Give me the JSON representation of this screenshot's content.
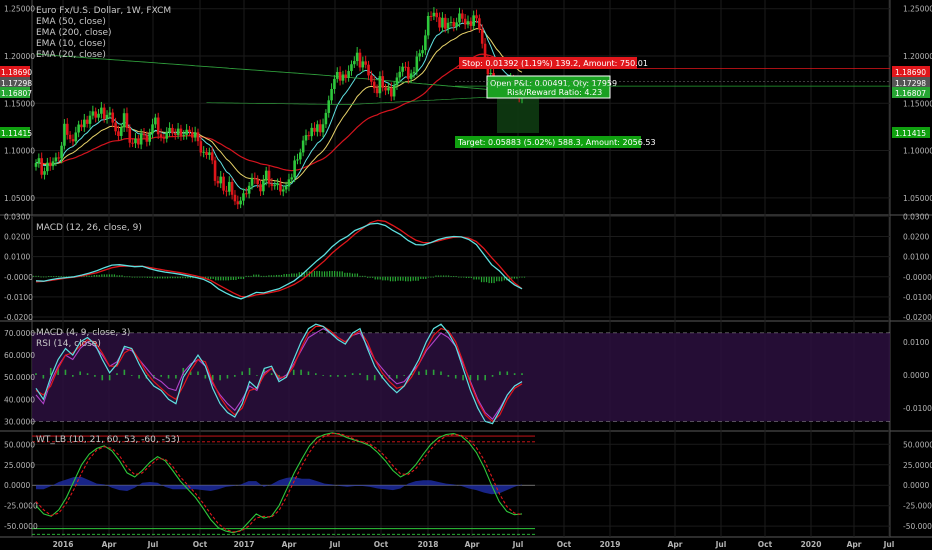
{
  "chart_data": {
    "type": "candlestick",
    "title": "Euro Fx/U.S. Dollar, 1W, FXCM",
    "x_ticks": [
      "2016",
      "Apr",
      "Jul",
      "Oct",
      "2017",
      "Apr",
      "Jul",
      "Oct",
      "2018",
      "Apr",
      "Jul",
      "Oct",
      "2019",
      "Apr",
      "Jul",
      "Oct",
      "2020",
      "Apr",
      "Jul"
    ],
    "price_pane": {
      "legend": [
        "EMA (50, close)",
        "EMA (200, close)",
        "EMA (10, close)",
        "EMA (20, close)"
      ],
      "ylim": [
        1.035,
        1.255
      ],
      "y_ticks": [
        "1.25000",
        "1.20000",
        "1.15000",
        "1.10000",
        "1.05000"
      ],
      "badges": [
        {
          "text": "1.18690",
          "color": "#e0161b"
        },
        {
          "text": "1.17298",
          "color": "#555555"
        },
        {
          "text": "1.16807",
          "color": "#26a533"
        },
        {
          "text": "1.11415",
          "color": "#10a010"
        }
      ],
      "trade": {
        "stop_label": "Stop: 0.01392 (1.19%) 139.2, Amount: 750.01",
        "open_label": "Open P&L: 0.00491, Qty: 17959",
        "rr_label": "Risk/Reward Ratio: 4.23",
        "target_label": "Target: 0.05883 (5.02%) 588.3, Amount: 2056.53"
      },
      "series_values": [
        1.0868,
        1.0919,
        1.0744,
        1.0782,
        1.0872,
        1.0835,
        1.0886,
        1.0927,
        1.0916,
        1.1051,
        1.1283,
        1.1166,
        1.1121,
        1.1097,
        1.1191,
        1.1275,
        1.1247,
        1.1327,
        1.1282,
        1.1369,
        1.1414,
        1.1348,
        1.1389,
        1.1454,
        1.1335,
        1.1377,
        1.1402,
        1.1296,
        1.1203,
        1.1154,
        1.1246,
        1.1395,
        1.1238,
        1.1083,
        1.1077,
        1.1125,
        1.1064,
        1.1179,
        1.1162,
        1.1093,
        1.1181,
        1.1277,
        1.1349,
        1.1172,
        1.1138,
        1.1125,
        1.1197,
        1.1239,
        1.1182,
        1.1165,
        1.1232,
        1.1153,
        1.1166,
        1.122,
        1.1196,
        1.1137,
        1.1192,
        1.1099,
        1.0979,
        1.0987,
        1.0953,
        1.0981,
        1.0896,
        1.0679,
        1.0653,
        1.0724,
        1.0576,
        1.0565,
        1.0668,
        1.0532,
        1.0463,
        1.0431,
        1.047,
        1.0548,
        1.0544,
        1.0627,
        1.0708,
        1.0698,
        1.0644,
        1.0569,
        1.0682,
        1.0787,
        1.065,
        1.0626,
        1.0634,
        1.0654,
        1.0567,
        1.0589,
        1.062,
        1.0695,
        1.0716,
        1.0895,
        1.0906,
        1.098,
        1.1106,
        1.1163,
        1.1152,
        1.124,
        1.1199,
        1.1278,
        1.1193,
        1.1278,
        1.1398,
        1.1531,
        1.1651,
        1.1758,
        1.1831,
        1.1739,
        1.1804,
        1.1768,
        1.1841,
        1.1913,
        1.1947,
        1.2035,
        1.1879,
        1.1943,
        1.1908,
        1.1795,
        1.1728,
        1.1659,
        1.1606,
        1.1787,
        1.1665,
        1.1636,
        1.1661,
        1.1572,
        1.1691,
        1.1773,
        1.1833,
        1.1887,
        1.1884,
        1.1758,
        1.1816,
        1.1833,
        1.1994,
        1.2029,
        1.2062,
        1.2218,
        1.2423,
        1.242,
        1.2457,
        1.241,
        1.2301,
        1.2404,
        1.2289,
        1.2351,
        1.236,
        1.2311,
        1.2355,
        1.245,
        1.2394,
        1.2333,
        1.2368,
        1.2318,
        1.243,
        1.2399,
        1.2285,
        1.213,
        1.1968,
        1.1808,
        1.182,
        1.1676,
        1.1654,
        1.1721,
        1.1616,
        1.1683,
        1.1666,
        1.176,
        1.1688,
        1.161,
        1.155,
        1.1685
      ]
    },
    "macd_pane": {
      "legend": "MACD (12, 26, close, 9)",
      "ylim": [
        -0.0205,
        0.0302
      ],
      "y_ticks": [
        "0.0300",
        "0.0200",
        "0.0100",
        "-0.0000",
        "-0.0100",
        "-0.0200"
      ],
      "macd": [
        -0.002,
        -0.0022,
        -0.0014,
        -0.0008,
        -0.0004,
        0.0,
        0.0008,
        0.0018,
        0.003,
        0.0045,
        0.0058,
        0.006,
        0.0055,
        0.005,
        0.0052,
        0.004,
        0.003,
        0.0023,
        0.0018,
        0.0012,
        0.0005,
        -0.0003,
        -0.0012,
        -0.003,
        -0.006,
        -0.008,
        -0.0098,
        -0.011,
        -0.0095,
        -0.0078,
        -0.008,
        -0.007,
        -0.006,
        -0.004,
        -0.002,
        0.001,
        0.0045,
        0.008,
        0.011,
        0.015,
        0.018,
        0.02,
        0.023,
        0.0245,
        0.0262,
        0.0265,
        0.0255,
        0.023,
        0.021,
        0.018,
        0.016,
        0.0158,
        0.017,
        0.0185,
        0.0195,
        0.02,
        0.0198,
        0.0185,
        0.016,
        0.011,
        0.006,
        0.003,
        -0.001,
        -0.004,
        -0.006
      ],
      "signal": [
        -0.0025,
        -0.0023,
        -0.0018,
        -0.0012,
        -0.0006,
        -0.0002,
        0.0004,
        0.0012,
        0.002,
        0.0032,
        0.0045,
        0.0052,
        0.0053,
        0.0052,
        0.0052,
        0.0046,
        0.0039,
        0.0032,
        0.0026,
        0.002,
        0.0013,
        0.0005,
        -0.0004,
        -0.0018,
        -0.004,
        -0.006,
        -0.008,
        -0.0098,
        -0.01,
        -0.009,
        -0.0085,
        -0.0078,
        -0.007,
        -0.0055,
        -0.0038,
        -0.0015,
        0.0015,
        0.0048,
        0.008,
        0.0118,
        0.015,
        0.0178,
        0.0212,
        0.024,
        0.0268,
        0.028,
        0.0275,
        0.0255,
        0.0232,
        0.0205,
        0.0182,
        0.017,
        0.017,
        0.0178,
        0.0188,
        0.0196,
        0.0198,
        0.0192,
        0.0175,
        0.014,
        0.0095,
        0.0055,
        0.001,
        -0.003,
        -0.006
      ]
    },
    "osc_pane": {
      "legend_macd": "MACD (4, 9, close, 3)",
      "legend_rsi": "RSI (14, close)",
      "left_ylim": [
        27,
        75
      ],
      "left_ticks": [
        "70.0000",
        "60.0000",
        "50.0000",
        "40.0000",
        "30.0000"
      ],
      "right_ylim": [
        -0.016,
        0.016
      ],
      "right_ticks": [
        "0.0100",
        "0.0000",
        "-0.0100"
      ],
      "upper_band": 70,
      "lower_band": 30,
      "rsi": [
        42,
        38,
        48,
        55,
        60,
        58,
        63,
        66,
        64,
        60,
        55,
        57,
        63,
        62,
        58,
        54,
        50,
        48,
        45,
        44,
        52,
        56,
        58,
        55,
        47,
        42,
        38,
        35,
        40,
        46,
        44,
        52,
        54,
        49,
        51,
        56,
        62,
        68,
        70,
        72,
        70,
        68,
        66,
        69,
        70,
        64,
        58,
        54,
        50,
        47,
        48,
        52,
        56,
        62,
        66,
        70,
        68,
        64,
        56,
        48,
        40,
        34,
        31,
        36,
        42,
        46,
        48
      ],
      "macd_fast": [
        45,
        40,
        50,
        58,
        63,
        60,
        66,
        68,
        65,
        58,
        52,
        56,
        64,
        63,
        56,
        50,
        46,
        44,
        40,
        38,
        50,
        55,
        60,
        55,
        45,
        38,
        34,
        32,
        38,
        48,
        45,
        54,
        55,
        48,
        50,
        58,
        66,
        72,
        74,
        73,
        70,
        67,
        65,
        70,
        72,
        63,
        55,
        50,
        46,
        43,
        46,
        52,
        58,
        66,
        72,
        74,
        70,
        64,
        54,
        44,
        36,
        30,
        29,
        35,
        42,
        46,
        48
      ],
      "macd_slow": [
        44,
        42,
        46,
        54,
        60,
        61,
        64,
        67,
        66,
        61,
        55,
        55,
        61,
        63,
        58,
        52,
        48,
        45,
        42,
        40,
        46,
        53,
        58,
        57,
        48,
        41,
        36,
        33,
        36,
        44,
        45,
        51,
        54,
        50,
        50,
        55,
        63,
        70,
        73,
        73,
        71,
        68,
        66,
        69,
        71,
        66,
        58,
        52,
        48,
        45,
        46,
        50,
        56,
        63,
        69,
        72,
        71,
        66,
        57,
        47,
        39,
        33,
        30,
        33,
        40,
        45,
        47
      ]
    },
    "wt_pane": {
      "legend": "WT_LB (10, 21, 60, 53, -60, -53)",
      "ylim": [
        -62,
        65
      ],
      "y_ticks": [
        "50.0000",
        "25.0000",
        "0.0000",
        "-25.0000",
        "-50.0000"
      ],
      "levels": [
        60,
        53,
        -53,
        -60
      ],
      "wt1": [
        -25,
        -35,
        -38,
        -30,
        -15,
        5,
        25,
        38,
        45,
        48,
        42,
        30,
        15,
        10,
        18,
        28,
        35,
        30,
        18,
        5,
        -5,
        -15,
        -28,
        -42,
        -52,
        -56,
        -58,
        -55,
        -45,
        -35,
        -40,
        -38,
        -25,
        -5,
        15,
        32,
        48,
        58,
        62,
        64,
        62,
        58,
        55,
        52,
        48,
        40,
        30,
        18,
        10,
        15,
        25,
        38,
        50,
        58,
        62,
        63,
        60,
        52,
        40,
        22,
        0,
        -20,
        -32,
        -36,
        -35
      ],
      "wt2": [
        -20,
        -30,
        -37,
        -34,
        -22,
        -5,
        15,
        32,
        43,
        47,
        45,
        36,
        22,
        13,
        15,
        24,
        32,
        32,
        23,
        10,
        0,
        -10,
        -22,
        -35,
        -47,
        -54,
        -57,
        -56,
        -50,
        -40,
        -38,
        -39,
        -31,
        -14,
        5,
        24,
        40,
        53,
        60,
        63,
        63,
        60,
        56,
        53,
        50,
        44,
        35,
        24,
        14,
        13,
        20,
        32,
        44,
        54,
        60,
        62,
        61,
        56,
        46,
        31,
        11,
        -10,
        -26,
        -34,
        -36
      ],
      "diff": [
        -5,
        -5,
        -1,
        4,
        7,
        10,
        10,
        6,
        2,
        1,
        -3,
        -6,
        -7,
        -3,
        3,
        4,
        3,
        -2,
        -5,
        -5,
        -5,
        -5,
        -6,
        -7,
        -5,
        -2,
        -1,
        1,
        5,
        5,
        -2,
        1,
        6,
        9,
        10,
        8,
        8,
        5,
        2,
        1,
        -1,
        -2,
        -1,
        -1,
        -2,
        -4,
        -5,
        -6,
        -4,
        2,
        5,
        6,
        6,
        4,
        2,
        1,
        -1,
        -4,
        -6,
        -9,
        -11,
        -10,
        -6,
        -2,
        1
      ]
    }
  }
}
